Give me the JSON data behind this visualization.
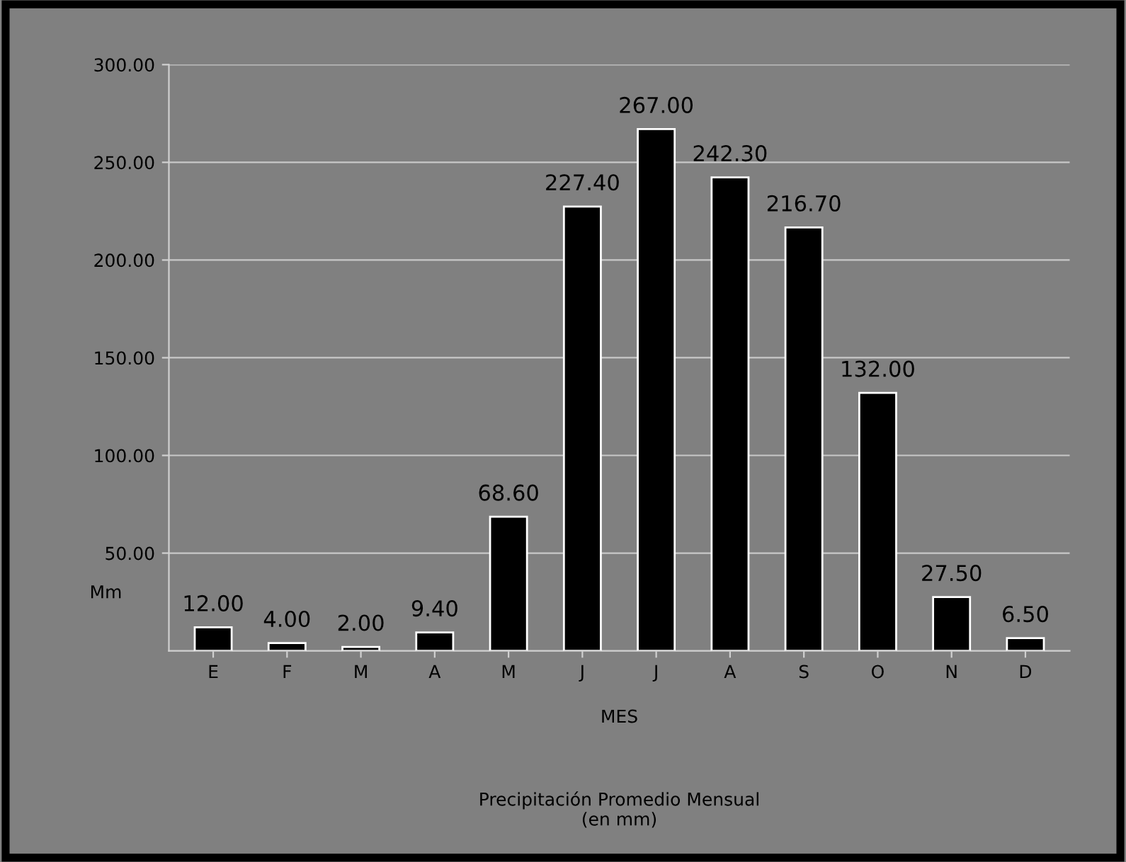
{
  "chart_data": {
    "type": "bar",
    "title": "Precipitación Promedio Mensual\n(en mm)",
    "xlabel": "MES",
    "ylabel": "Mm",
    "categories": [
      "E",
      "F",
      "M",
      "A",
      "M",
      "J",
      "J",
      "A",
      "S",
      "O",
      "N",
      "D"
    ],
    "values": [
      12.0,
      4.0,
      2.0,
      9.4,
      68.6,
      227.4,
      267.0,
      242.3,
      216.7,
      132.0,
      27.5,
      6.5
    ],
    "value_labels": [
      "12.00",
      "4.00",
      "2.00",
      "9.40",
      "68.60",
      "227.40",
      "267.00",
      "242.30",
      "216.70",
      "132.00",
      "27.50",
      "6.50"
    ],
    "color": "#000000",
    "ylim": [
      0,
      300
    ],
    "yticks": [
      {
        "value": 50,
        "label": "50.00"
      },
      {
        "value": 100,
        "label": "100.00"
      },
      {
        "value": 150,
        "label": "150.00"
      },
      {
        "value": 200,
        "label": "200.00"
      },
      {
        "value": 250,
        "label": "250.00"
      },
      {
        "value": 300,
        "label": "300.00"
      }
    ],
    "grid": "y"
  }
}
